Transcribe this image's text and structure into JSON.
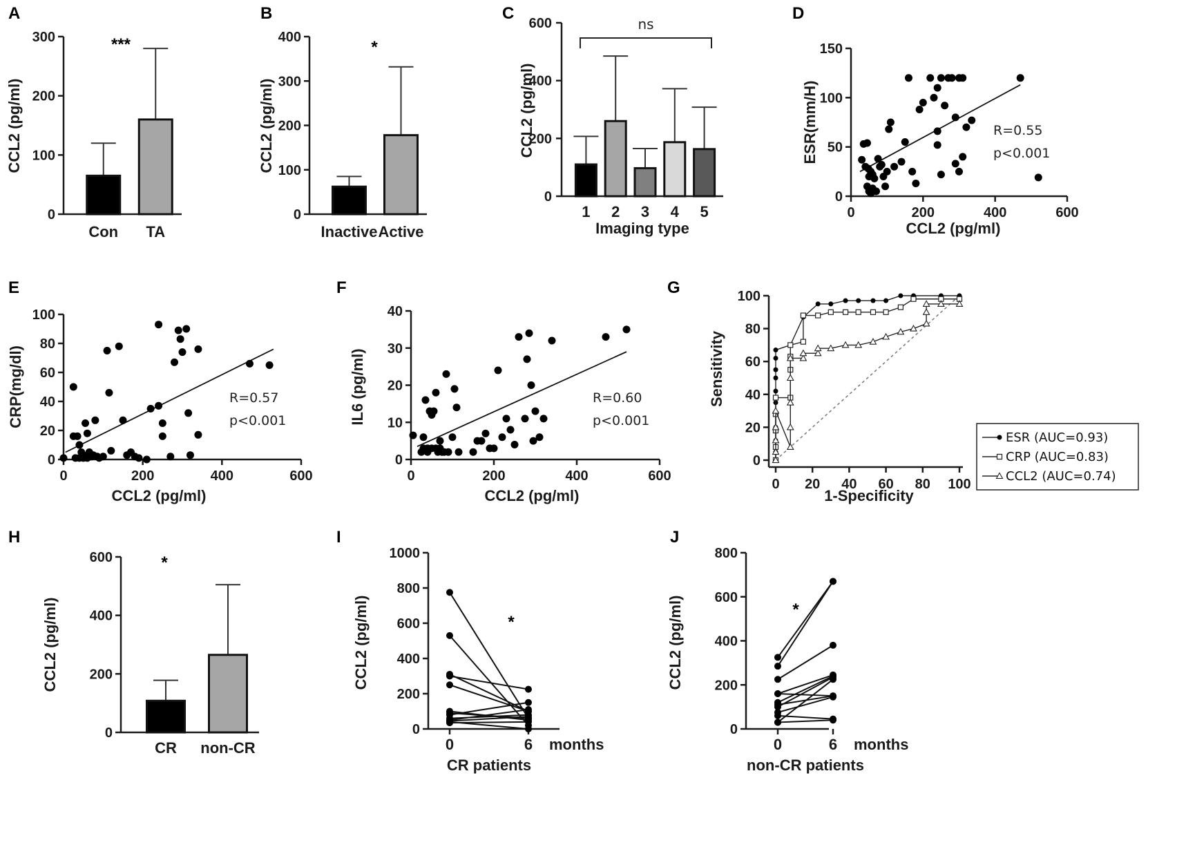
{
  "chart_data": [
    {
      "id": "A",
      "type": "bar",
      "panel_label": "A",
      "categories": [
        "Con",
        "TA"
      ],
      "values": [
        65,
        160
      ],
      "errors": [
        120,
        280
      ],
      "colors": [
        "#000000",
        "#a6a6a6"
      ],
      "ylabel": "CCL2  (pg/ml)",
      "ylim": [
        0,
        300
      ],
      "yticks": [
        "0",
        "100",
        "200",
        "300"
      ],
      "significance": "***"
    },
    {
      "id": "B",
      "type": "bar",
      "panel_label": "B",
      "categories": [
        "Inactive",
        "Active"
      ],
      "values": [
        62,
        178
      ],
      "errors": [
        85,
        332
      ],
      "colors": [
        "#000000",
        "#a6a6a6"
      ],
      "ylabel": "CCL2  (pg/ml)",
      "ylim": [
        0,
        400
      ],
      "yticks": [
        "0",
        "100",
        "200",
        "300",
        "400"
      ],
      "significance": "*"
    },
    {
      "id": "C",
      "type": "bar",
      "panel_label": "C",
      "categories": [
        "1",
        "2",
        "3",
        "4",
        "5"
      ],
      "values": [
        110,
        260,
        97,
        187,
        163
      ],
      "errors": [
        207,
        485,
        165,
        372,
        308
      ],
      "colors": [
        "#000000",
        "#a6a6a6",
        "#808080",
        "#d9d9d9",
        "#595959"
      ],
      "xlabel": "Imaging type",
      "ylabel": "CCL2  (pg/ml)",
      "ylim": [
        0,
        600
      ],
      "yticks": [
        "0",
        "200",
        "400",
        "600"
      ],
      "significance": "ns"
    },
    {
      "id": "D",
      "type": "scatter",
      "panel_label": "D",
      "xlabel": "CCL2 (pg/ml)",
      "ylabel": "ESR(mm/H)",
      "xlim": [
        0,
        600
      ],
      "ylim": [
        0,
        150
      ],
      "xticks": [
        "0",
        "200",
        "400",
        "600"
      ],
      "yticks": [
        "0",
        "50",
        "100",
        "150"
      ],
      "r": "R=0.55",
      "p": "p<0.001",
      "fit": [
        [
          25,
          25
        ],
        [
          470,
          113
        ]
      ],
      "points": [
        [
          30,
          37
        ],
        [
          35,
          53
        ],
        [
          45,
          54
        ],
        [
          40,
          30
        ],
        [
          48,
          28
        ],
        [
          50,
          20
        ],
        [
          55,
          25
        ],
        [
          60,
          22
        ],
        [
          65,
          18
        ],
        [
          45,
          10
        ],
        [
          50,
          5
        ],
        [
          55,
          3
        ],
        [
          60,
          8
        ],
        [
          70,
          5
        ],
        [
          75,
          38
        ],
        [
          80,
          30
        ],
        [
          85,
          32
        ],
        [
          90,
          20
        ],
        [
          95,
          10
        ],
        [
          100,
          25
        ],
        [
          105,
          68
        ],
        [
          110,
          75
        ],
        [
          120,
          30
        ],
        [
          140,
          35
        ],
        [
          150,
          55
        ],
        [
          160,
          120
        ],
        [
          170,
          25
        ],
        [
          180,
          13
        ],
        [
          190,
          88
        ],
        [
          200,
          95
        ],
        [
          220,
          120
        ],
        [
          230,
          100
        ],
        [
          240,
          110
        ],
        [
          250,
          120
        ],
        [
          260,
          92
        ],
        [
          240,
          66
        ],
        [
          240,
          52
        ],
        [
          250,
          22
        ],
        [
          270,
          120
        ],
        [
          280,
          120
        ],
        [
          290,
          80
        ],
        [
          300,
          120
        ],
        [
          310,
          120
        ],
        [
          320,
          70
        ],
        [
          290,
          33
        ],
        [
          300,
          25
        ],
        [
          310,
          40
        ],
        [
          335,
          77
        ],
        [
          470,
          120
        ],
        [
          520,
          19
        ]
      ]
    },
    {
      "id": "E",
      "type": "scatter",
      "panel_label": "E",
      "xlabel": "CCL2 (pg/ml)",
      "ylabel": "CRP(mg/dl)",
      "xlim": [
        0,
        600
      ],
      "ylim": [
        0,
        100
      ],
      "xticks": [
        "0",
        "200",
        "400",
        "600"
      ],
      "yticks": [
        "0",
        "20",
        "40",
        "60",
        "80",
        "100"
      ],
      "r": "R=0.57",
      "p": "p<0.001",
      "fit": [
        [
          5,
          5
        ],
        [
          530,
          76
        ]
      ],
      "points": [
        [
          25,
          50
        ],
        [
          25,
          16
        ],
        [
          35,
          16
        ],
        [
          40,
          10
        ],
        [
          45,
          5
        ],
        [
          50,
          3
        ],
        [
          55,
          25
        ],
        [
          60,
          18
        ],
        [
          65,
          5
        ],
        [
          70,
          2
        ],
        [
          75,
          3
        ],
        [
          80,
          27
        ],
        [
          85,
          2
        ],
        [
          90,
          1
        ],
        [
          100,
          2
        ],
        [
          110,
          75
        ],
        [
          115,
          46
        ],
        [
          120,
          6
        ],
        [
          140,
          78
        ],
        [
          150,
          27
        ],
        [
          160,
          3
        ],
        [
          170,
          5
        ],
        [
          180,
          2
        ],
        [
          190,
          1
        ],
        [
          210,
          0
        ],
        [
          220,
          35
        ],
        [
          240,
          93
        ],
        [
          240,
          37
        ],
        [
          250,
          25
        ],
        [
          250,
          16
        ],
        [
          270,
          2
        ],
        [
          280,
          67
        ],
        [
          290,
          89
        ],
        [
          295,
          83
        ],
        [
          300,
          74
        ],
        [
          310,
          90
        ],
        [
          315,
          32
        ],
        [
          320,
          3
        ],
        [
          340,
          76
        ],
        [
          340,
          17
        ],
        [
          470,
          66
        ],
        [
          520,
          65
        ],
        [
          30,
          1
        ],
        [
          40,
          1
        ],
        [
          50,
          1
        ],
        [
          60,
          1
        ],
        [
          0,
          1
        ],
        [
          70,
          3
        ]
      ]
    },
    {
      "id": "F",
      "type": "scatter",
      "panel_label": "F",
      "xlabel": "CCL2 (pg/ml)",
      "ylabel": "IL6 (pg/ml)",
      "xlim": [
        0,
        600
      ],
      "ylim": [
        0,
        40
      ],
      "xticks": [
        "0",
        "200",
        "400",
        "600"
      ],
      "yticks": [
        "0",
        "10",
        "20",
        "30",
        "40"
      ],
      "r": "R=0.60",
      "p": "p<0.001",
      "fit": [
        [
          15,
          3.5
        ],
        [
          520,
          29
        ]
      ],
      "points": [
        [
          5,
          6.5
        ],
        [
          25,
          2
        ],
        [
          30,
          6
        ],
        [
          35,
          16
        ],
        [
          40,
          2
        ],
        [
          45,
          13
        ],
        [
          50,
          12
        ],
        [
          55,
          13
        ],
        [
          60,
          18
        ],
        [
          65,
          2
        ],
        [
          70,
          5
        ],
        [
          75,
          2
        ],
        [
          80,
          2
        ],
        [
          85,
          23
        ],
        [
          90,
          2
        ],
        [
          100,
          6
        ],
        [
          105,
          19
        ],
        [
          110,
          14
        ],
        [
          115,
          2
        ],
        [
          150,
          2
        ],
        [
          160,
          5
        ],
        [
          170,
          5
        ],
        [
          180,
          7
        ],
        [
          190,
          3
        ],
        [
          200,
          3
        ],
        [
          210,
          24
        ],
        [
          220,
          6
        ],
        [
          230,
          11
        ],
        [
          240,
          8
        ],
        [
          250,
          4
        ],
        [
          260,
          33
        ],
        [
          275,
          11
        ],
        [
          280,
          27
        ],
        [
          285,
          34
        ],
        [
          290,
          20
        ],
        [
          295,
          5
        ],
        [
          300,
          13
        ],
        [
          310,
          6
        ],
        [
          320,
          11
        ],
        [
          340,
          32
        ],
        [
          470,
          33
        ],
        [
          520,
          35
        ],
        [
          40,
          3
        ],
        [
          50,
          3
        ],
        [
          60,
          3
        ],
        [
          70,
          3
        ],
        [
          30,
          3
        ]
      ]
    },
    {
      "id": "G",
      "type": "line",
      "panel_label": "G",
      "xlabel": "1-Specificity",
      "ylabel": "Sensitivity",
      "xlim": [
        0,
        100
      ],
      "ylim": [
        0,
        100
      ],
      "xticks": [
        "0",
        "20",
        "40",
        "60",
        "80",
        "100"
      ],
      "yticks": [
        "0",
        "20",
        "40",
        "60",
        "80",
        "100"
      ],
      "series": [
        {
          "name": "ESR (AUC=0.93)",
          "marker": "dot",
          "points": [
            [
              0,
              0
            ],
            [
              0,
              5
            ],
            [
              0,
              12
            ],
            [
              0,
              20
            ],
            [
              0,
              28
            ],
            [
              0,
              35
            ],
            [
              0,
              42
            ],
            [
              0,
              50
            ],
            [
              0,
              55
            ],
            [
              0,
              62
            ],
            [
              0,
              67
            ],
            [
              8,
              70
            ],
            [
              15,
              87
            ],
            [
              23,
              95
            ],
            [
              30,
              95
            ],
            [
              38,
              97
            ],
            [
              45,
              97
            ],
            [
              53,
              97
            ],
            [
              60,
              97
            ],
            [
              68,
              100
            ],
            [
              75,
              100
            ],
            [
              90,
              100
            ],
            [
              100,
              100
            ]
          ]
        },
        {
          "name": "CRP (AUC=0.83)",
          "marker": "square",
          "points": [
            [
              0,
              0
            ],
            [
              0,
              8
            ],
            [
              0,
              18
            ],
            [
              0,
              28
            ],
            [
              0,
              38
            ],
            [
              8,
              38
            ],
            [
              8,
              55
            ],
            [
              8,
              63
            ],
            [
              8,
              70
            ],
            [
              15,
              72
            ],
            [
              15,
              88
            ],
            [
              23,
              88
            ],
            [
              30,
              90
            ],
            [
              38,
              90
            ],
            [
              45,
              90
            ],
            [
              53,
              90
            ],
            [
              60,
              90
            ],
            [
              68,
              93
            ],
            [
              75,
              98
            ],
            [
              90,
              98
            ],
            [
              100,
              98
            ]
          ]
        },
        {
          "name": "CCL2 (AUC=0.74)",
          "marker": "triangle",
          "points": [
            [
              0,
              0
            ],
            [
              0,
              5
            ],
            [
              0,
              12
            ],
            [
              0,
              20
            ],
            [
              0,
              30
            ],
            [
              8,
              8
            ],
            [
              8,
              20
            ],
            [
              8,
              35
            ],
            [
              8,
              50
            ],
            [
              8,
              62
            ],
            [
              15,
              62
            ],
            [
              15,
              65
            ],
            [
              23,
              65
            ],
            [
              23,
              68
            ],
            [
              30,
              68
            ],
            [
              38,
              70
            ],
            [
              45,
              70
            ],
            [
              53,
              72
            ],
            [
              60,
              75
            ],
            [
              68,
              78
            ],
            [
              75,
              80
            ],
            [
              82,
              83
            ],
            [
              82,
              90
            ],
            [
              82,
              95
            ],
            [
              90,
              95
            ],
            [
              100,
              95
            ]
          ]
        }
      ],
      "reference_line": "diagonal"
    },
    {
      "id": "H",
      "type": "bar",
      "panel_label": "H",
      "categories": [
        "CR",
        "non-CR"
      ],
      "values": [
        108,
        265
      ],
      "errors": [
        178,
        505
      ],
      "colors": [
        "#000000",
        "#a6a6a6"
      ],
      "ylabel": "CCL2  (pg/ml)",
      "ylim": [
        0,
        600
      ],
      "yticks": [
        "0",
        "200",
        "400",
        "600"
      ],
      "significance": "*"
    },
    {
      "id": "I",
      "type": "line",
      "panel_label": "I",
      "title": "CR patients",
      "xlabel": "months",
      "ylabel": "CCL2 (pg/ml)",
      "ylim": [
        0,
        1000
      ],
      "categories": [
        "0",
        "6"
      ],
      "yticks": [
        "0",
        "200",
        "400",
        "600",
        "800",
        "1000"
      ],
      "significance": "*",
      "pairs": [
        [
          775,
          60
        ],
        [
          530,
          20
        ],
        [
          310,
          100
        ],
        [
          300,
          225
        ],
        [
          250,
          100
        ],
        [
          100,
          50
        ],
        [
          90,
          60
        ],
        [
          80,
          150
        ],
        [
          60,
          80
        ],
        [
          50,
          110
        ],
        [
          45,
          70
        ],
        [
          40,
          0
        ],
        [
          35,
          40
        ]
      ]
    },
    {
      "id": "J",
      "type": "line",
      "panel_label": "J",
      "title": "non-CR patients",
      "xlabel": "months",
      "ylabel": "CCL2 (pg/ml)",
      "ylim": [
        0,
        800
      ],
      "categories": [
        "0",
        "6"
      ],
      "yticks": [
        "0",
        "200",
        "400",
        "600",
        "800"
      ],
      "significance": "*",
      "pairs": [
        [
          325,
          670
        ],
        [
          285,
          670
        ],
        [
          225,
          380
        ],
        [
          160,
          245
        ],
        [
          110,
          150
        ],
        [
          100,
          235
        ],
        [
          75,
          145
        ],
        [
          60,
          45
        ],
        [
          30,
          40
        ],
        [
          160,
          150
        ],
        [
          120,
          240
        ],
        [
          30,
          225
        ]
      ]
    }
  ]
}
